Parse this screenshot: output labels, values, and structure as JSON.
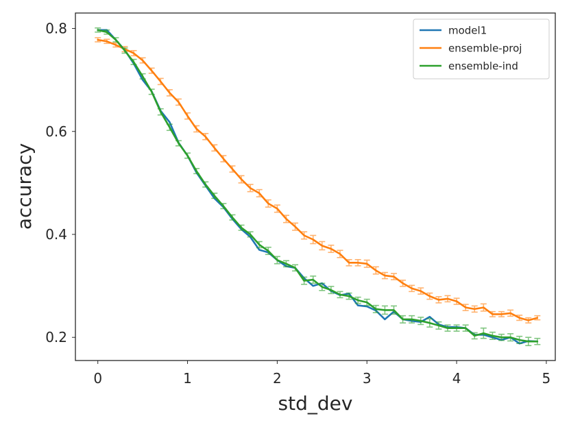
{
  "chart_data": {
    "type": "line",
    "title": "",
    "xlabel": "std_dev",
    "ylabel": "accuracy",
    "xlim": [
      -0.25,
      5.1
    ],
    "ylim": [
      0.155,
      0.83
    ],
    "xticks": [
      0,
      1,
      2,
      3,
      4,
      5
    ],
    "xtick_labels": [
      "0",
      "1",
      "2",
      "3",
      "4",
      "5"
    ],
    "yticks": [
      0.2,
      0.4,
      0.6,
      0.8
    ],
    "ytick_labels": [
      "0.2",
      "0.4",
      "0.6",
      "0.8"
    ],
    "grid": false,
    "legend_position": "top-right",
    "series": [
      {
        "name": "model1",
        "color": "#1f77b4",
        "error_bars": false,
        "x": [
          0,
          0.1,
          0.2,
          0.3,
          0.4,
          0.5,
          0.6,
          0.7,
          0.8,
          0.9,
          1.0,
          1.1,
          1.2,
          1.3,
          1.4,
          1.5,
          1.6,
          1.7,
          1.8,
          1.9,
          2.0,
          2.1,
          2.2,
          2.3,
          2.4,
          2.5,
          2.6,
          2.7,
          2.8,
          2.9,
          3.0,
          3.1,
          3.2,
          3.3,
          3.4,
          3.5,
          3.6,
          3.7,
          3.8,
          3.9,
          4.0,
          4.1,
          4.2,
          4.3,
          4.4,
          4.5,
          4.6,
          4.7,
          4.8,
          4.9
        ],
        "values": [
          0.797,
          0.797,
          0.778,
          0.758,
          0.732,
          0.7,
          0.678,
          0.64,
          0.618,
          0.578,
          0.553,
          0.52,
          0.495,
          0.47,
          0.453,
          0.43,
          0.41,
          0.395,
          0.37,
          0.365,
          0.35,
          0.338,
          0.335,
          0.315,
          0.3,
          0.305,
          0.29,
          0.282,
          0.285,
          0.262,
          0.26,
          0.252,
          0.235,
          0.25,
          0.235,
          0.232,
          0.23,
          0.24,
          0.225,
          0.22,
          0.22,
          0.218,
          0.205,
          0.205,
          0.2,
          0.195,
          0.2,
          0.188,
          0.193,
          0.192
        ]
      },
      {
        "name": "ensemble-proj",
        "color": "#ff7f0e",
        "error_bars": true,
        "x": [
          0,
          0.1,
          0.2,
          0.3,
          0.4,
          0.5,
          0.6,
          0.7,
          0.8,
          0.9,
          1.0,
          1.1,
          1.2,
          1.3,
          1.4,
          1.5,
          1.6,
          1.7,
          1.8,
          1.9,
          2.0,
          2.1,
          2.2,
          2.3,
          2.4,
          2.5,
          2.6,
          2.7,
          2.8,
          2.9,
          3.0,
          3.1,
          3.2,
          3.3,
          3.4,
          3.5,
          3.6,
          3.7,
          3.8,
          3.9,
          4.0,
          4.1,
          4.2,
          4.3,
          4.4,
          4.5,
          4.6,
          4.7,
          4.8,
          4.9
        ],
        "values": [
          0.778,
          0.775,
          0.768,
          0.76,
          0.752,
          0.738,
          0.718,
          0.697,
          0.675,
          0.657,
          0.63,
          0.605,
          0.59,
          0.568,
          0.547,
          0.527,
          0.507,
          0.49,
          0.48,
          0.46,
          0.45,
          0.43,
          0.415,
          0.398,
          0.39,
          0.378,
          0.372,
          0.362,
          0.345,
          0.345,
          0.343,
          0.33,
          0.32,
          0.318,
          0.305,
          0.295,
          0.29,
          0.28,
          0.273,
          0.275,
          0.27,
          0.258,
          0.255,
          0.258,
          0.245,
          0.245,
          0.247,
          0.238,
          0.233,
          0.238
        ],
        "errors": [
          0.004,
          0.004,
          0.004,
          0.005,
          0.005,
          0.005,
          0.005,
          0.006,
          0.006,
          0.006,
          0.006,
          0.006,
          0.006,
          0.006,
          0.006,
          0.006,
          0.007,
          0.007,
          0.007,
          0.007,
          0.007,
          0.007,
          0.007,
          0.007,
          0.008,
          0.008,
          0.007,
          0.007,
          0.006,
          0.006,
          0.007,
          0.007,
          0.006,
          0.006,
          0.006,
          0.006,
          0.006,
          0.006,
          0.006,
          0.006,
          0.006,
          0.006,
          0.006,
          0.007,
          0.005,
          0.005,
          0.006,
          0.005,
          0.005,
          0.004
        ]
      },
      {
        "name": "ensemble-ind",
        "color": "#2ca02c",
        "error_bars": true,
        "x": [
          0,
          0.1,
          0.2,
          0.3,
          0.4,
          0.5,
          0.6,
          0.7,
          0.8,
          0.9,
          1.0,
          1.1,
          1.2,
          1.3,
          1.4,
          1.5,
          1.6,
          1.7,
          1.8,
          1.9,
          2.0,
          2.1,
          2.2,
          2.3,
          2.4,
          2.5,
          2.6,
          2.7,
          2.8,
          2.9,
          3.0,
          3.1,
          3.2,
          3.3,
          3.4,
          3.5,
          3.6,
          3.7,
          3.8,
          3.9,
          4.0,
          4.1,
          4.2,
          4.3,
          4.4,
          4.5,
          4.6,
          4.7,
          4.8,
          4.9
        ],
        "values": [
          0.797,
          0.793,
          0.778,
          0.757,
          0.735,
          0.707,
          0.677,
          0.638,
          0.608,
          0.577,
          0.553,
          0.523,
          0.497,
          0.475,
          0.455,
          0.433,
          0.413,
          0.4,
          0.38,
          0.368,
          0.35,
          0.343,
          0.335,
          0.31,
          0.312,
          0.298,
          0.292,
          0.283,
          0.28,
          0.272,
          0.268,
          0.255,
          0.253,
          0.253,
          0.235,
          0.235,
          0.232,
          0.228,
          0.223,
          0.218,
          0.218,
          0.218,
          0.203,
          0.208,
          0.203,
          0.2,
          0.2,
          0.195,
          0.192,
          0.192
        ],
        "errors": [
          0.004,
          0.004,
          0.004,
          0.005,
          0.005,
          0.005,
          0.005,
          0.006,
          0.006,
          0.005,
          0.005,
          0.005,
          0.005,
          0.005,
          0.005,
          0.005,
          0.005,
          0.005,
          0.006,
          0.007,
          0.007,
          0.006,
          0.006,
          0.007,
          0.007,
          0.007,
          0.007,
          0.006,
          0.006,
          0.006,
          0.006,
          0.007,
          0.008,
          0.008,
          0.007,
          0.007,
          0.007,
          0.008,
          0.007,
          0.006,
          0.006,
          0.006,
          0.006,
          0.01,
          0.007,
          0.006,
          0.007,
          0.007,
          0.008,
          0.006
        ]
      }
    ]
  }
}
